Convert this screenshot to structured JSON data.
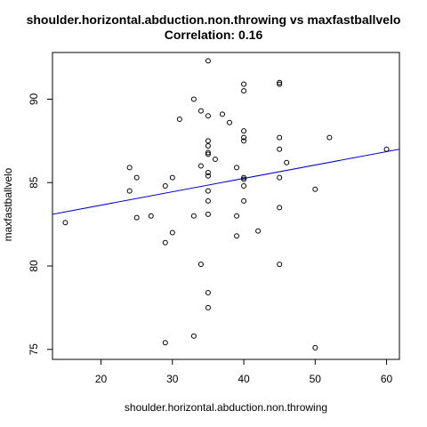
{
  "chart_data": {
    "type": "scatter",
    "title": "shoulder.horizontal.abduction.non.throwing vs maxfastballvelo",
    "subtitle": "Correlation: 0.16",
    "xlabel": "shoulder.horizontal.abduction.non.throwing",
    "ylabel": "maxfastballvelo",
    "xlim": [
      13.2,
      61.8
    ],
    "ylim": [
      74.4,
      92.8
    ],
    "xticks": [
      20,
      30,
      40,
      50,
      60
    ],
    "yticks": [
      75,
      80,
      85,
      90
    ],
    "grid": false,
    "legend": "none",
    "marker_color": "#000000",
    "fit_line": {
      "color": "#0000cd",
      "x": [
        13.2,
        61.8
      ],
      "y": [
        83.1,
        87.0
      ]
    },
    "points": [
      {
        "x": 15,
        "y": 82.6
      },
      {
        "x": 24,
        "y": 85.9
      },
      {
        "x": 24,
        "y": 84.5
      },
      {
        "x": 25,
        "y": 85.3
      },
      {
        "x": 25,
        "y": 82.9
      },
      {
        "x": 27,
        "y": 83.0
      },
      {
        "x": 29,
        "y": 84.8
      },
      {
        "x": 29,
        "y": 81.4
      },
      {
        "x": 29,
        "y": 75.4
      },
      {
        "x": 30,
        "y": 85.3
      },
      {
        "x": 30,
        "y": 82.0
      },
      {
        "x": 31,
        "y": 88.8
      },
      {
        "x": 33,
        "y": 90.0
      },
      {
        "x": 33,
        "y": 83.0
      },
      {
        "x": 33,
        "y": 75.8
      },
      {
        "x": 34,
        "y": 89.3
      },
      {
        "x": 34,
        "y": 86.0
      },
      {
        "x": 34,
        "y": 80.1
      },
      {
        "x": 35,
        "y": 92.3
      },
      {
        "x": 35,
        "y": 89.0
      },
      {
        "x": 35,
        "y": 87.5
      },
      {
        "x": 35,
        "y": 87.2
      },
      {
        "x": 35,
        "y": 86.8
      },
      {
        "x": 35,
        "y": 86.7
      },
      {
        "x": 35,
        "y": 85.6
      },
      {
        "x": 35,
        "y": 85.4
      },
      {
        "x": 35,
        "y": 84.5
      },
      {
        "x": 35,
        "y": 83.9
      },
      {
        "x": 35,
        "y": 83.1
      },
      {
        "x": 35,
        "y": 78.4
      },
      {
        "x": 35,
        "y": 77.5
      },
      {
        "x": 36,
        "y": 86.4
      },
      {
        "x": 37,
        "y": 89.1
      },
      {
        "x": 38,
        "y": 88.6
      },
      {
        "x": 39,
        "y": 85.9
      },
      {
        "x": 39,
        "y": 83.0
      },
      {
        "x": 39,
        "y": 81.8
      },
      {
        "x": 40,
        "y": 90.9
      },
      {
        "x": 40,
        "y": 90.5
      },
      {
        "x": 40,
        "y": 88.1
      },
      {
        "x": 40,
        "y": 87.7
      },
      {
        "x": 40,
        "y": 87.5
      },
      {
        "x": 40,
        "y": 85.3
      },
      {
        "x": 40,
        "y": 85.2
      },
      {
        "x": 40,
        "y": 84.8
      },
      {
        "x": 40,
        "y": 83.9
      },
      {
        "x": 42,
        "y": 82.1
      },
      {
        "x": 45,
        "y": 91.0
      },
      {
        "x": 45,
        "y": 90.9
      },
      {
        "x": 45,
        "y": 87.7
      },
      {
        "x": 45,
        "y": 87.0
      },
      {
        "x": 45,
        "y": 85.3
      },
      {
        "x": 45,
        "y": 83.5
      },
      {
        "x": 45,
        "y": 80.1
      },
      {
        "x": 46,
        "y": 86.2
      },
      {
        "x": 50,
        "y": 84.6
      },
      {
        "x": 50,
        "y": 75.1
      },
      {
        "x": 52,
        "y": 87.7
      },
      {
        "x": 60,
        "y": 87.0
      }
    ]
  }
}
